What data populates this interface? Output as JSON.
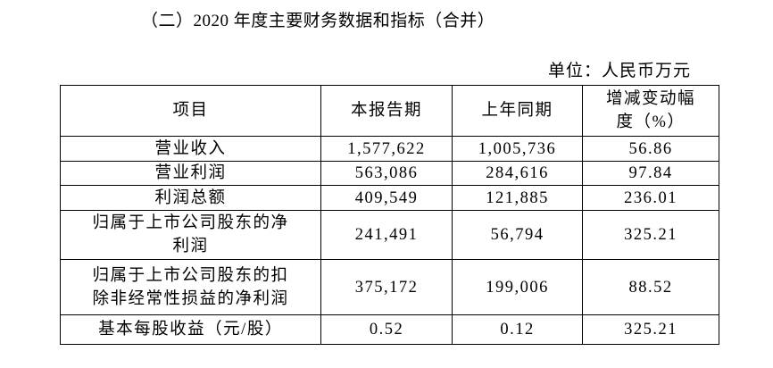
{
  "title": "（二）2020 年度主要财务数据和指标（合并）",
  "unit": "单位：人民币万元",
  "table": {
    "header": [
      "项目",
      "本报告期",
      "上年同期",
      [
        "增减变动幅",
        "度（%）"
      ]
    ],
    "rows": [
      [
        "营业收入",
        "1,577,622",
        "1,005,736",
        "56.86"
      ],
      [
        "营业利润",
        "563,086",
        "284,616",
        "97.84"
      ],
      [
        "利润总额",
        "409,549",
        "121,885",
        "236.01"
      ],
      [
        [
          "归属于上市公司股东的净",
          "利润"
        ],
        "241,491",
        "56,794",
        "325.21"
      ],
      [
        [
          "归属于上市公司股东的扣",
          "除非经常性损益的净利润"
        ],
        "375,172",
        "199,006",
        "88.52"
      ],
      [
        "基本每股收益（元/股）",
        "0.52",
        "0.12",
        "325.21"
      ]
    ]
  }
}
